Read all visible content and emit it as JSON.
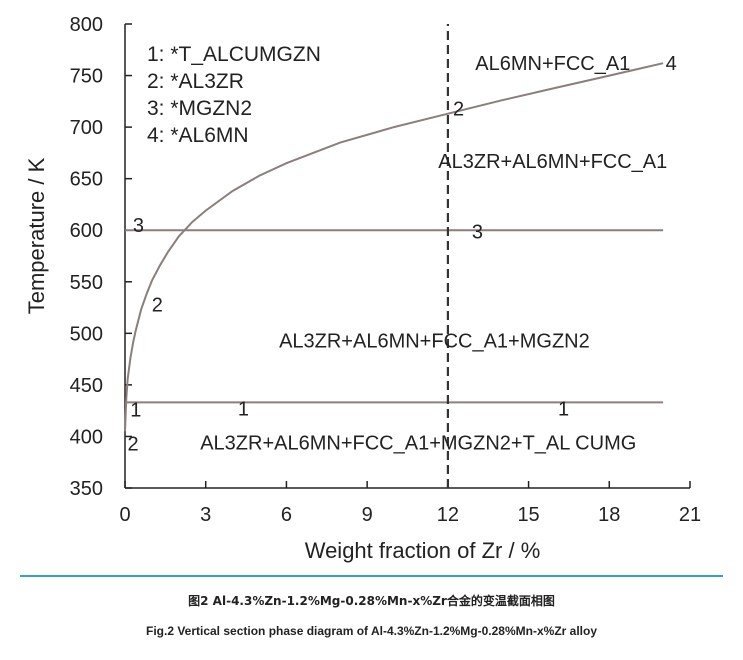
{
  "chart_data": {
    "type": "line",
    "xlabel": "Weight fraction of Zr / %",
    "ylabel": "Temperature / K",
    "xlim": [
      0,
      21
    ],
    "ylim": [
      350,
      800
    ],
    "x_ticks": [
      "0",
      "3",
      "6",
      "9",
      "12",
      "15",
      "18",
      "21"
    ],
    "y_ticks": [
      "350",
      "400",
      "450",
      "500",
      "550",
      "600",
      "650",
      "700",
      "750",
      "800"
    ],
    "grid": false,
    "legend_placement": "top-left",
    "legend": [
      "1: *T_ALCUMGZN",
      "2: *AL3ZR",
      "3: *MGZN2",
      "4: *AL6MN"
    ],
    "series": [
      {
        "label_number": "2",
        "x": [
          0.0,
          0.05,
          0.1,
          0.2,
          0.3,
          0.4,
          0.6,
          0.8,
          1.0,
          1.3,
          1.6,
          2.0,
          2.5,
          3.0,
          4.0,
          5.0,
          6.0,
          8.0,
          10.0,
          12.0,
          14.0,
          16.0,
          18.0,
          20.0
        ],
        "y": [
          405,
          437,
          456,
          476,
          491,
          503,
          523,
          538,
          551,
          566,
          579,
          594,
          608,
          619,
          638,
          653,
          665,
          685,
          700,
          713,
          726,
          738,
          750,
          762
        ]
      },
      {
        "label_number": "3",
        "x": [
          0.0,
          20.0
        ],
        "y": [
          600,
          600
        ]
      },
      {
        "label_number": "1",
        "x": [
          0.0,
          20.0
        ],
        "y": [
          433,
          433
        ]
      },
      {
        "label_number": "2",
        "style": "dashed",
        "x": [
          12.0,
          12.0
        ],
        "y": [
          350,
          800
        ]
      }
    ],
    "line_number_labels": [
      {
        "text": "4",
        "x": 20.3,
        "y": 762
      },
      {
        "text": "2",
        "x": 12.4,
        "y": 718
      },
      {
        "text": "3",
        "x": 0.5,
        "y": 605
      },
      {
        "text": "3",
        "x": 13.1,
        "y": 599
      },
      {
        "text": "2",
        "x": 1.2,
        "y": 528
      },
      {
        "text": "1",
        "x": 0.4,
        "y": 426
      },
      {
        "text": "1",
        "x": 4.4,
        "y": 427
      },
      {
        "text": "1",
        "x": 16.3,
        "y": 427
      },
      {
        "text": "2",
        "x": 0.3,
        "y": 393
      }
    ],
    "phase_region_labels": [
      {
        "text": "AL6MN+FCC_A1",
        "x": 15.9,
        "y": 762
      },
      {
        "text": "AL3ZR+AL6MN+FCC_A1",
        "x": 15.9,
        "y": 667
      },
      {
        "text": "AL3ZR+AL6MN+FCC_A1+MGZN2",
        "x": 11.5,
        "y": 493
      },
      {
        "text": "AL3ZR+AL6MN+FCC_A1+MGZN2+T_AL CUMG",
        "x": 10.9,
        "y": 394
      }
    ],
    "line_color": "#8a7f7c",
    "dashed_line_color": "#333333",
    "axis_color": "#222222"
  },
  "caption": {
    "chinese": "图2   Al-4.3%Zn-1.2%Mg-0.28%Mn-x%Zr合金的变温截面相图",
    "english": "Fig.2   Vertical section phase diagram of Al-4.3%Zn-1.2%Mg-0.28%Mn-x%Zr alloy"
  },
  "caption_rule_color": "#3a9fc0"
}
